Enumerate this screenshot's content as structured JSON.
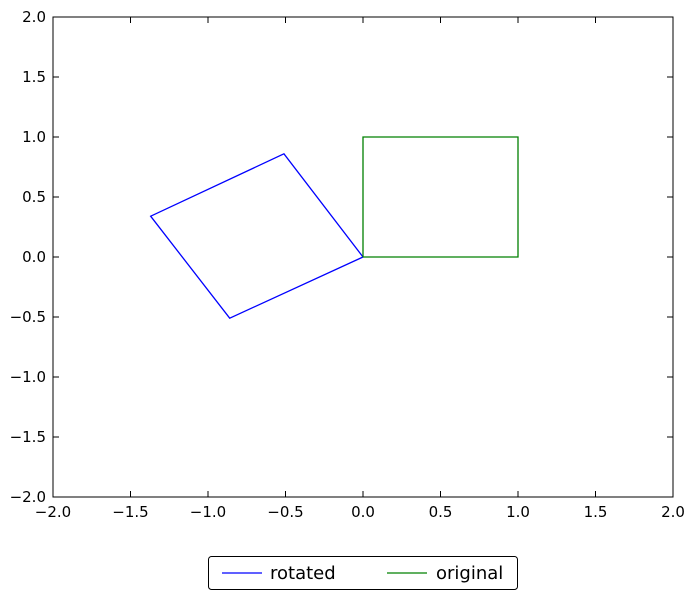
{
  "chart_data": {
    "type": "line",
    "xlim": [
      -2.0,
      2.0
    ],
    "ylim": [
      -2.0,
      2.0
    ],
    "xticks": [
      -2.0,
      -1.5,
      -1.0,
      -0.5,
      0.0,
      0.5,
      1.0,
      1.5,
      2.0
    ],
    "yticks": [
      -2.0,
      -1.5,
      -1.0,
      -0.5,
      0.0,
      0.5,
      1.0,
      1.5,
      2.0
    ],
    "xtick_labels": [
      "−2.0",
      "−1.5",
      "−1.0",
      "−0.5",
      "0.0",
      "0.5",
      "1.0",
      "1.5",
      "2.0"
    ],
    "ytick_labels": [
      "−2.0",
      "−1.5",
      "−1.0",
      "−0.5",
      "0.0",
      "0.5",
      "1.0",
      "1.5",
      "2.0"
    ],
    "grid": false,
    "legend_placement": "bottom-center",
    "legend_columns": 2,
    "series": [
      {
        "name": "rotated",
        "color": "#0000ff",
        "x": [
          0.0,
          -0.86,
          -1.37,
          -0.51,
          0.0
        ],
        "y": [
          0.0,
          -0.51,
          0.34,
          0.86,
          0.0
        ]
      },
      {
        "name": "original",
        "color": "#008000",
        "x": [
          0.0,
          1.0,
          1.0,
          0.0,
          0.0
        ],
        "y": [
          0.0,
          0.0,
          1.0,
          1.0,
          0.0
        ]
      }
    ]
  }
}
